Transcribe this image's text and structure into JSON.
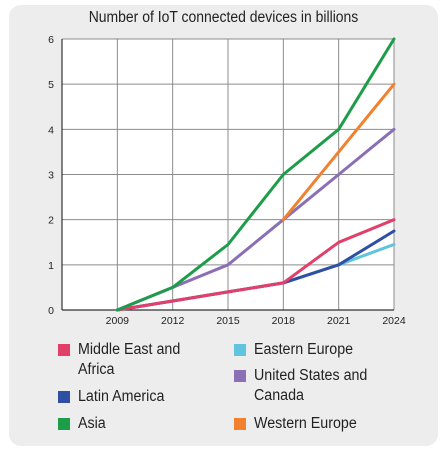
{
  "chart_data": {
    "type": "line",
    "title": "Number of IoT connected devices in billions",
    "xlabel": "",
    "ylabel": "",
    "x": [
      2006,
      2009,
      2012,
      2015,
      2018,
      2021,
      2024
    ],
    "xticks": [
      "2009",
      "2012",
      "2015",
      "2018",
      "2021",
      "2024"
    ],
    "yticks": [
      "0",
      "1",
      "2",
      "3",
      "4",
      "5",
      "6"
    ],
    "xlim": [
      2006,
      2024
    ],
    "ylim": [
      0,
      6
    ],
    "grid": true,
    "legend_position": "bottom",
    "series": [
      {
        "name": "Middle East and Africa",
        "color": "#e23f6b",
        "x": [
          2009,
          2012,
          2015,
          2018,
          2021,
          2024
        ],
        "y": [
          0.0,
          0.2,
          0.4,
          0.6,
          1.5,
          2.0
        ]
      },
      {
        "name": "Eastern Europe",
        "color": "#5fc4dc",
        "x": [
          2009,
          2012,
          2015,
          2018,
          2021,
          2024
        ],
        "y": [
          0.0,
          0.2,
          0.4,
          0.6,
          1.0,
          1.45
        ]
      },
      {
        "name": "Latin America",
        "color": "#2e4fa3",
        "x": [
          2009,
          2012,
          2015,
          2018,
          2021,
          2024
        ],
        "y": [
          0.0,
          0.2,
          0.4,
          0.6,
          1.0,
          1.75
        ]
      },
      {
        "name": "United States and Canada",
        "color": "#8a6fb5",
        "x": [
          2009,
          2012,
          2015,
          2018,
          2021,
          2024
        ],
        "y": [
          0.0,
          0.5,
          1.0,
          2.0,
          3.0,
          4.0
        ]
      },
      {
        "name": "Asia",
        "color": "#1d9c49",
        "x": [
          2009,
          2012,
          2015,
          2018,
          2021,
          2024
        ],
        "y": [
          0.0,
          0.5,
          1.45,
          3.0,
          4.0,
          6.0
        ]
      },
      {
        "name": "Western Europe",
        "color": "#f2812f",
        "x": [
          2018,
          2021,
          2024
        ],
        "y": [
          2.0,
          3.5,
          5.0
        ]
      }
    ]
  }
}
